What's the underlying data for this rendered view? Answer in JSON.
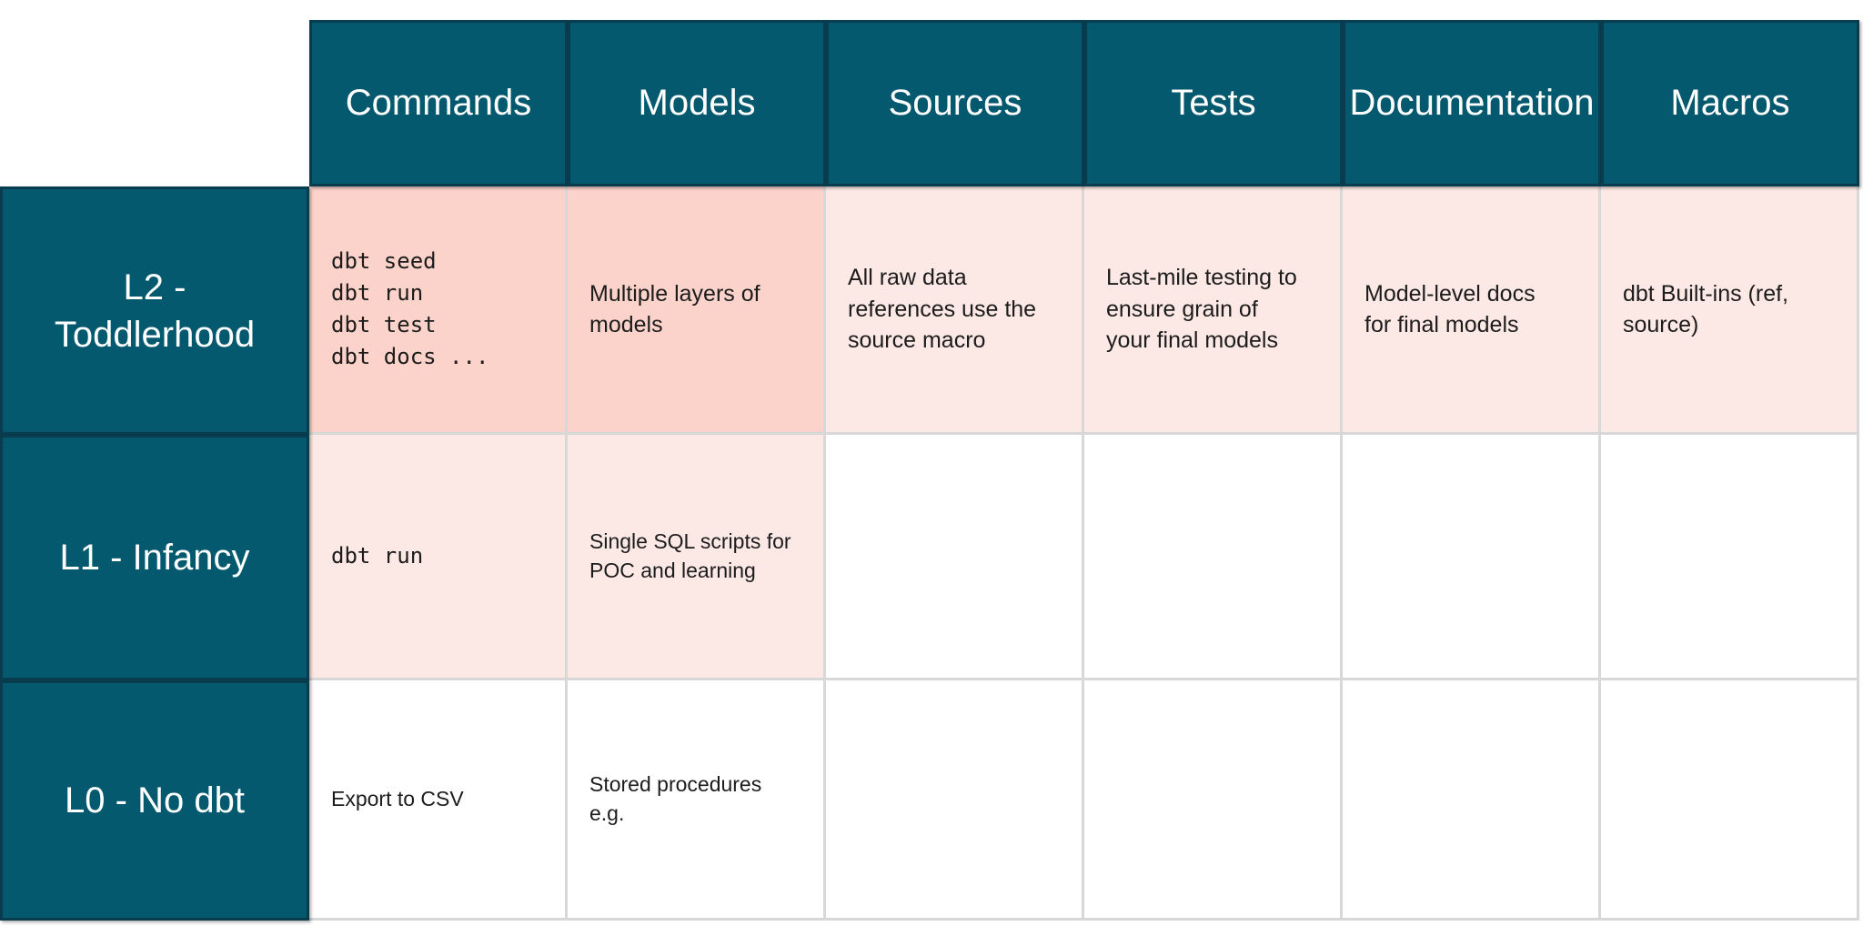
{
  "palette": {
    "teal": "#05596F",
    "teal_border": "#093C4E",
    "dark_pink": "#FBD3CA",
    "light_pink": "#FCE8E4",
    "white": "#FFFFFF",
    "grid_line": "#D8D8D8",
    "text": "#1C1C1C",
    "header_text": "#FFFFFF"
  },
  "table": {
    "columns": [
      "Commands",
      "Models",
      "Sources",
      "Tests",
      "Documentation",
      "Macros"
    ],
    "rows": [
      {
        "label": "L2 - Toddlerhood",
        "cells": [
          {
            "text": "dbt seed\ndbt run\ndbt test\ndbt docs ...",
            "bg": "dark_pink",
            "mono": true
          },
          {
            "text": "Multiple layers of\nmodels",
            "bg": "dark_pink"
          },
          {
            "text": "All raw data\nreferences use the\nsource macro",
            "bg": "light_pink"
          },
          {
            "text": "Last-mile testing to\nensure grain of\nyour final models",
            "bg": "light_pink"
          },
          {
            "text": "Model-level docs\nfor final models",
            "bg": "light_pink"
          },
          {
            "text": "dbt Built-ins (ref,\nsource)",
            "bg": "light_pink"
          }
        ]
      },
      {
        "label": "L1 - Infancy",
        "cells": [
          {
            "text": "dbt run",
            "bg": "light_pink",
            "mono": true
          },
          {
            "text": "Single SQL scripts for\nPOC and learning",
            "bg": "light_pink"
          },
          {
            "text": "",
            "bg": "white"
          },
          {
            "text": "",
            "bg": "white"
          },
          {
            "text": "",
            "bg": "white"
          },
          {
            "text": "",
            "bg": "white"
          }
        ]
      },
      {
        "label": "L0 - No dbt",
        "cells": [
          {
            "text": "Export to CSV",
            "bg": "white"
          },
          {
            "text": "Stored procedures\ne.g.",
            "bg": "white"
          },
          {
            "text": "",
            "bg": "white"
          },
          {
            "text": "",
            "bg": "white"
          },
          {
            "text": "",
            "bg": "white"
          },
          {
            "text": "",
            "bg": "white"
          }
        ]
      }
    ]
  }
}
